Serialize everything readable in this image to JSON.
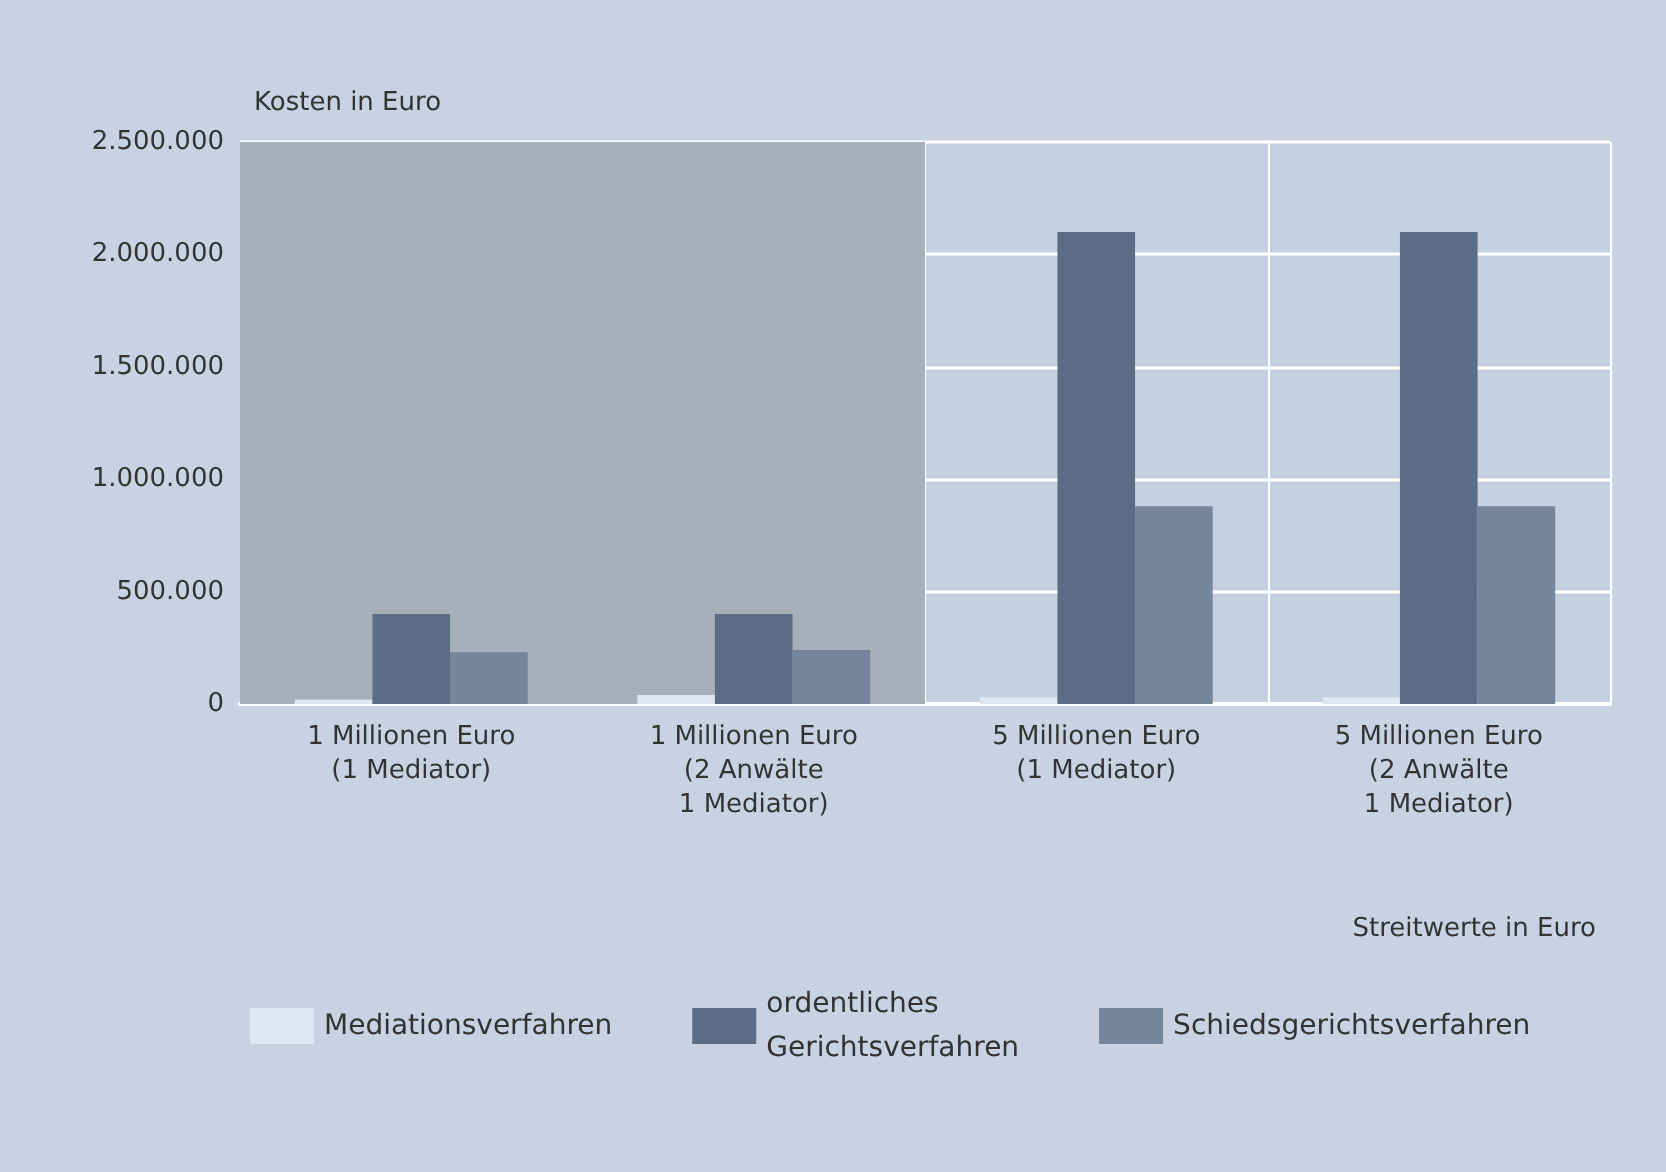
{
  "chart_data": {
    "type": "bar",
    "ylabel": "Kosten in Euro",
    "xlabel": "Streitwerte in Euro",
    "categories": [
      "1 Millionen Euro\n(1 Mediator)",
      "1 Millionen Euro\n(2 Anwälte\n1 Mediator)",
      "5 Millionen Euro\n(1 Mediator)",
      "5 Millionen Euro\n(2 Anwälte\n1 Mediator)"
    ],
    "series": [
      {
        "name": "Mediationsverfahren",
        "color": "#dfe6f1",
        "values": [
          20000,
          40000,
          30000,
          30000
        ]
      },
      {
        "name": "ordentliches\nGerichtsverfahren",
        "color": "#5b6d85",
        "values": [
          400000,
          400000,
          2100000,
          2100000
        ]
      },
      {
        "name": "Schiedsgerichtsverfahren",
        "color": "#74859c",
        "values": [
          230000,
          240000,
          880000,
          880000
        ]
      }
    ],
    "ylim": [
      0,
      2500000
    ],
    "yticks": [
      {
        "value": 0,
        "label": "0"
      },
      {
        "value": 500000,
        "label": "500.000"
      },
      {
        "value": 1000000,
        "label": "1.000.000"
      },
      {
        "value": 1500000,
        "label": "1.500.000"
      },
      {
        "value": 2000000,
        "label": "2.000.000"
      },
      {
        "value": 2500000,
        "label": "2.500.000"
      }
    ],
    "bands": [
      {
        "axis": "x",
        "from": "1 Millionen Euro\n(1 Mediator)",
        "to": "1 Millionen Euro\n(2 Anwälte\n1 Mediator)",
        "color": "#a7afbb"
      }
    ],
    "grid": true,
    "legend": "bottom"
  }
}
